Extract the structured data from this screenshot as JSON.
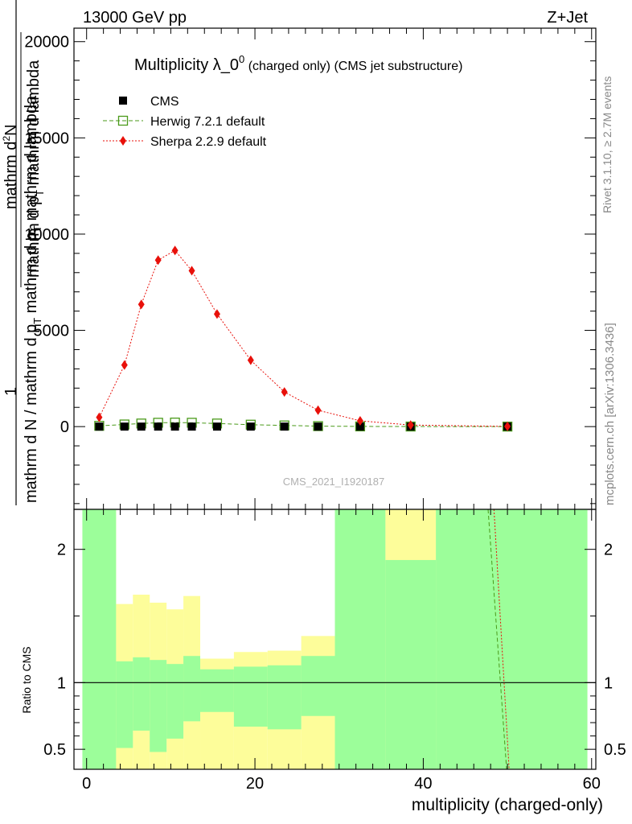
{
  "header": {
    "left": "13000 GeV pp",
    "right": "Z+Jet"
  },
  "side_labels": {
    "rivet": "Rivet 3.1.10, ≥ 2.7M events",
    "mcplots": "mcplots.cern.ch [arXiv:1306.3436]"
  },
  "colors": {
    "cms": "#000000",
    "herwig": "#4a9a1a",
    "sherpa": "#e8100a",
    "band_green": "#9cfe9a",
    "band_yellow": "#fdfd9a"
  },
  "chart_data": [
    {
      "type": "scatter",
      "title_main": "Multiplicity λ_0",
      "title_sup": "0",
      "title_sub": " (charged only) (CMS jet substructure)",
      "ylabel_num_1": "mathrm d",
      "ylabel_num_1_sup": "2",
      "ylabel_num_2": "N",
      "ylabel_num_3": "mathrm d p",
      "ylabel_num_3_sub": "T",
      "ylabel_num_4": " mathrm d lambda",
      "ylabel_frac_one": "1",
      "ylabel_den_1": "mathrm d N / mathrm d p",
      "ylabel_den_1_sub": "T",
      "ylabel_den_2": " mathrm d p",
      "ylabel_den_2_sub": "T",
      "ylabel_den_3": " mathrm d lambda",
      "watermark": "CMS_2021_I1920187",
      "xlim": [
        -1.5,
        60.5
      ],
      "ylim": [
        -4300,
        20700
      ],
      "yticks": [
        {
          "v": 0,
          "label": "0"
        },
        {
          "v": 5000,
          "label": "5000"
        },
        {
          "v": 10000,
          "label": "10000"
        },
        {
          "v": 15000,
          "label": "15000"
        },
        {
          "v": 20000,
          "label": "20000"
        }
      ],
      "legend": [
        {
          "key": "cms",
          "label": "CMS"
        },
        {
          "key": "herwig",
          "label": "Herwig 7.2.1 default"
        },
        {
          "key": "sherpa",
          "label": "Sherpa 2.2.9 default"
        }
      ],
      "series": [
        {
          "name": "CMS",
          "key": "cms",
          "x": [
            1.5,
            4.5,
            6.5,
            8.5,
            10.5,
            12.5,
            15.5,
            19.5,
            23.5,
            27.5,
            32.5,
            38.5,
            50.0
          ],
          "y": [
            0,
            0,
            0,
            0,
            0,
            0,
            0,
            0,
            0,
            0,
            0,
            0,
            0
          ]
        },
        {
          "name": "Herwig 7.2.1 default",
          "key": "herwig",
          "x": [
            1.5,
            4.5,
            6.5,
            8.5,
            10.5,
            12.5,
            15.5,
            19.5,
            23.5,
            27.5,
            32.5,
            38.5,
            50.0
          ],
          "y": [
            40,
            110,
            160,
            200,
            210,
            200,
            160,
            100,
            60,
            25,
            10,
            4,
            1
          ]
        },
        {
          "name": "Sherpa 2.2.9 default",
          "key": "sherpa",
          "x": [
            1.5,
            4.5,
            6.5,
            8.5,
            10.5,
            12.5,
            15.5,
            19.5,
            23.5,
            27.5,
            32.5,
            38.5,
            50.0
          ],
          "y": [
            480,
            3200,
            6350,
            8650,
            9150,
            8100,
            5850,
            3450,
            1800,
            850,
            300,
            80,
            10
          ]
        }
      ]
    },
    {
      "type": "area",
      "ylabel": "Ratio to CMS",
      "xlabel": "multiplicity (charged-only)",
      "xlim": [
        -1.5,
        60.5
      ],
      "ylim": [
        0.35,
        2.3
      ],
      "xticks": [
        {
          "v": 0,
          "label": "0"
        },
        {
          "v": 20,
          "label": "20"
        },
        {
          "v": 40,
          "label": "40"
        },
        {
          "v": 60,
          "label": "60"
        }
      ],
      "yticks": [
        {
          "v": 0.5,
          "label": "0.5"
        },
        {
          "v": 1,
          "label": "1"
        },
        {
          "v": 2,
          "label": "2"
        }
      ],
      "bins": [
        {
          "lo": -0.5,
          "hi": 3.5,
          "green": [
            0.35,
            2.3
          ],
          "yellow": [
            0.35,
            2.3
          ]
        },
        {
          "lo": 3.5,
          "hi": 5.5,
          "green": [
            0.51,
            1.16
          ],
          "yellow": [
            0.35,
            1.59
          ]
        },
        {
          "lo": 5.5,
          "hi": 7.5,
          "green": [
            0.64,
            1.19
          ],
          "yellow": [
            0.35,
            1.66
          ]
        },
        {
          "lo": 7.5,
          "hi": 9.5,
          "green": [
            0.48,
            1.17
          ],
          "yellow": [
            0.35,
            1.6
          ]
        },
        {
          "lo": 9.5,
          "hi": 11.5,
          "green": [
            0.58,
            1.14
          ],
          "yellow": [
            0.35,
            1.55
          ]
        },
        {
          "lo": 11.5,
          "hi": 13.5,
          "green": [
            0.71,
            1.2
          ],
          "yellow": [
            0.35,
            1.65
          ]
        },
        {
          "lo": 13.5,
          "hi": 17.5,
          "green": [
            0.78,
            1.1
          ],
          "yellow": [
            0.35,
            1.18
          ]
        },
        {
          "lo": 17.5,
          "hi": 21.5,
          "green": [
            0.67,
            1.12
          ],
          "yellow": [
            0.35,
            1.23
          ]
        },
        {
          "lo": 21.5,
          "hi": 25.5,
          "green": [
            0.65,
            1.13
          ],
          "yellow": [
            0.35,
            1.24
          ]
        },
        {
          "lo": 25.5,
          "hi": 29.5,
          "green": [
            0.75,
            1.2
          ],
          "yellow": [
            0.35,
            1.35
          ]
        },
        {
          "lo": 29.5,
          "hi": 35.5,
          "green": [
            0.35,
            2.3
          ],
          "yellow": [
            0.35,
            2.3
          ]
        },
        {
          "lo": 35.5,
          "hi": 41.5,
          "green": [
            0.35,
            1.92
          ],
          "yellow": [
            0.35,
            2.3
          ]
        },
        {
          "lo": 41.5,
          "hi": 59.5,
          "green": [
            0.35,
            2.3
          ],
          "yellow": [
            0.35,
            2.3
          ]
        }
      ],
      "series": [
        {
          "name": "Herwig 7.2.1 default",
          "key": "herwig",
          "x": [
            47.7,
            49.9
          ],
          "y": [
            2.3,
            0.35
          ]
        },
        {
          "name": "Sherpa 2.2.9 default",
          "key": "sherpa",
          "x": [
            48.4,
            50.2
          ],
          "y": [
            2.3,
            0.35
          ]
        }
      ]
    }
  ]
}
